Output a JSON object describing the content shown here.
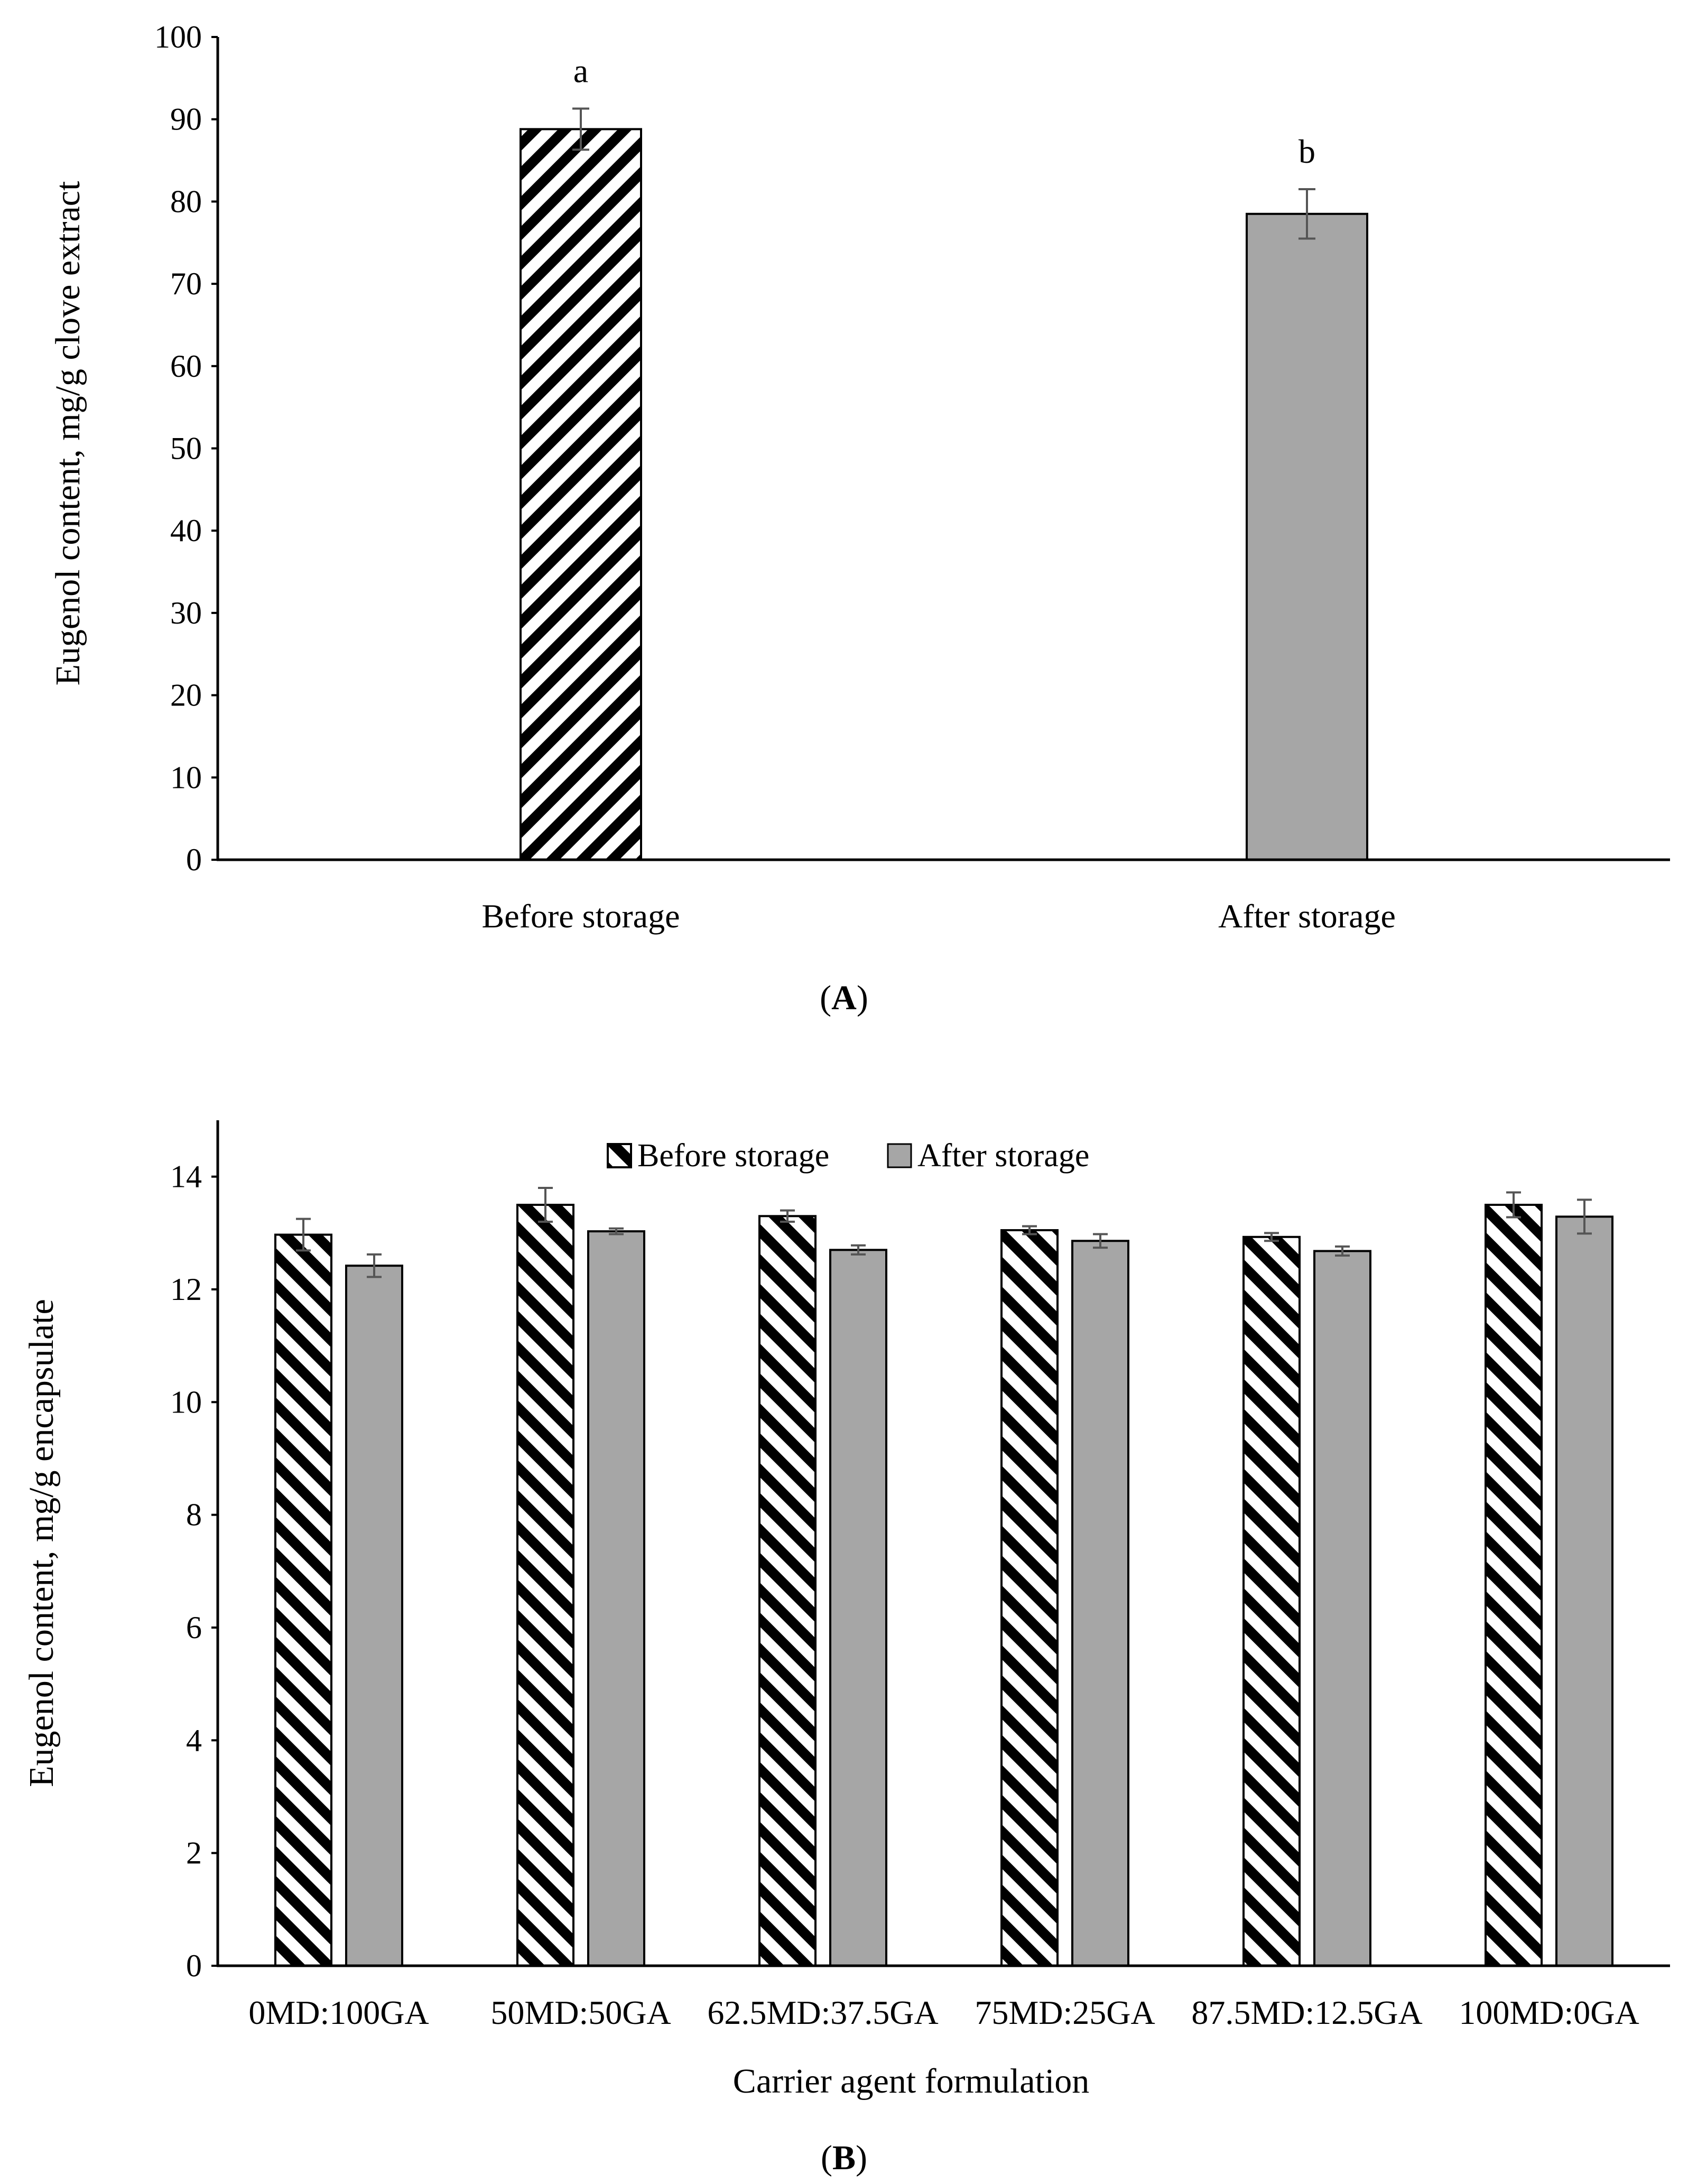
{
  "chart_data": [
    {
      "panel": "A",
      "type": "bar",
      "title": "",
      "xlabel": "",
      "ylabel": "Eugenol content, mg/g clove extract",
      "ylim": [
        0,
        100
      ],
      "yticks": [
        0,
        10,
        20,
        30,
        40,
        50,
        60,
        70,
        80,
        90,
        100
      ],
      "categories": [
        "Before storage",
        "After storage"
      ],
      "values": [
        88.8,
        78.5
      ],
      "errors": [
        2.5,
        3.0
      ],
      "significance_labels": [
        "a",
        "b"
      ],
      "styles": [
        "hatched",
        "gray"
      ],
      "panel_label": "A",
      "grid": false
    },
    {
      "panel": "B",
      "type": "bar",
      "title": "",
      "xlabel": "Carrier agent formulation",
      "ylabel": "Eugenol content, mg/g encapsulate",
      "ylim": [
        0,
        15
      ],
      "yticks": [
        0,
        2,
        4,
        6,
        8,
        10,
        12,
        14
      ],
      "categories": [
        "0MD:100GA",
        "50MD:50GA",
        "62.5MD:37.5GA",
        "75MD:25GA",
        "87.5MD:12.5GA",
        "100MD:0GA"
      ],
      "series": [
        {
          "name": "Before storage",
          "style": "hatched",
          "values": [
            12.97,
            13.5,
            13.3,
            13.05,
            12.93,
            13.5
          ],
          "errors": [
            0.28,
            0.3,
            0.1,
            0.07,
            0.07,
            0.22
          ]
        },
        {
          "name": "After storage",
          "style": "gray",
          "values": [
            12.42,
            13.03,
            12.7,
            12.86,
            12.68,
            13.29
          ],
          "errors": [
            0.2,
            0.05,
            0.08,
            0.12,
            0.08,
            0.3
          ]
        }
      ],
      "legend_position": "top-center",
      "panel_label": "B",
      "grid": false
    }
  ],
  "colors": {
    "gray_bar": "#a6a6a6",
    "error_bar": "#555555"
  }
}
